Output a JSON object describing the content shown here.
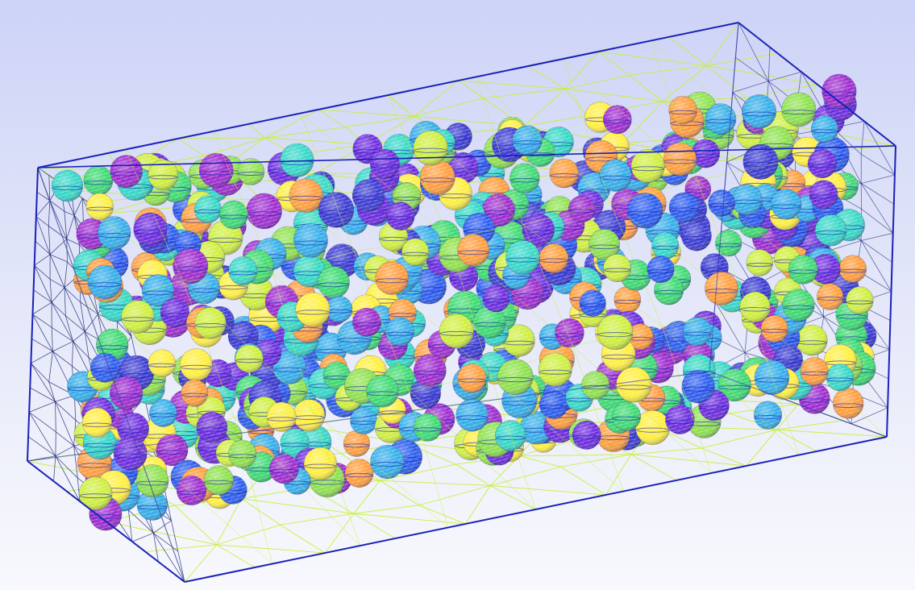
{
  "scene": {
    "palette": [
      "#ffee33",
      "#ccee33",
      "#88e044",
      "#33d86a",
      "#2ad6c4",
      "#2aaae8",
      "#2255ee",
      "#3333d0",
      "#6622dd",
      "#9922cc",
      "#ff9933"
    ],
    "box_edge_color": "#1a22b8",
    "interior_mesh_color": "#101a6a",
    "face_mesh_color": "#c8f03a",
    "sphere_count_approx": 720
  }
}
